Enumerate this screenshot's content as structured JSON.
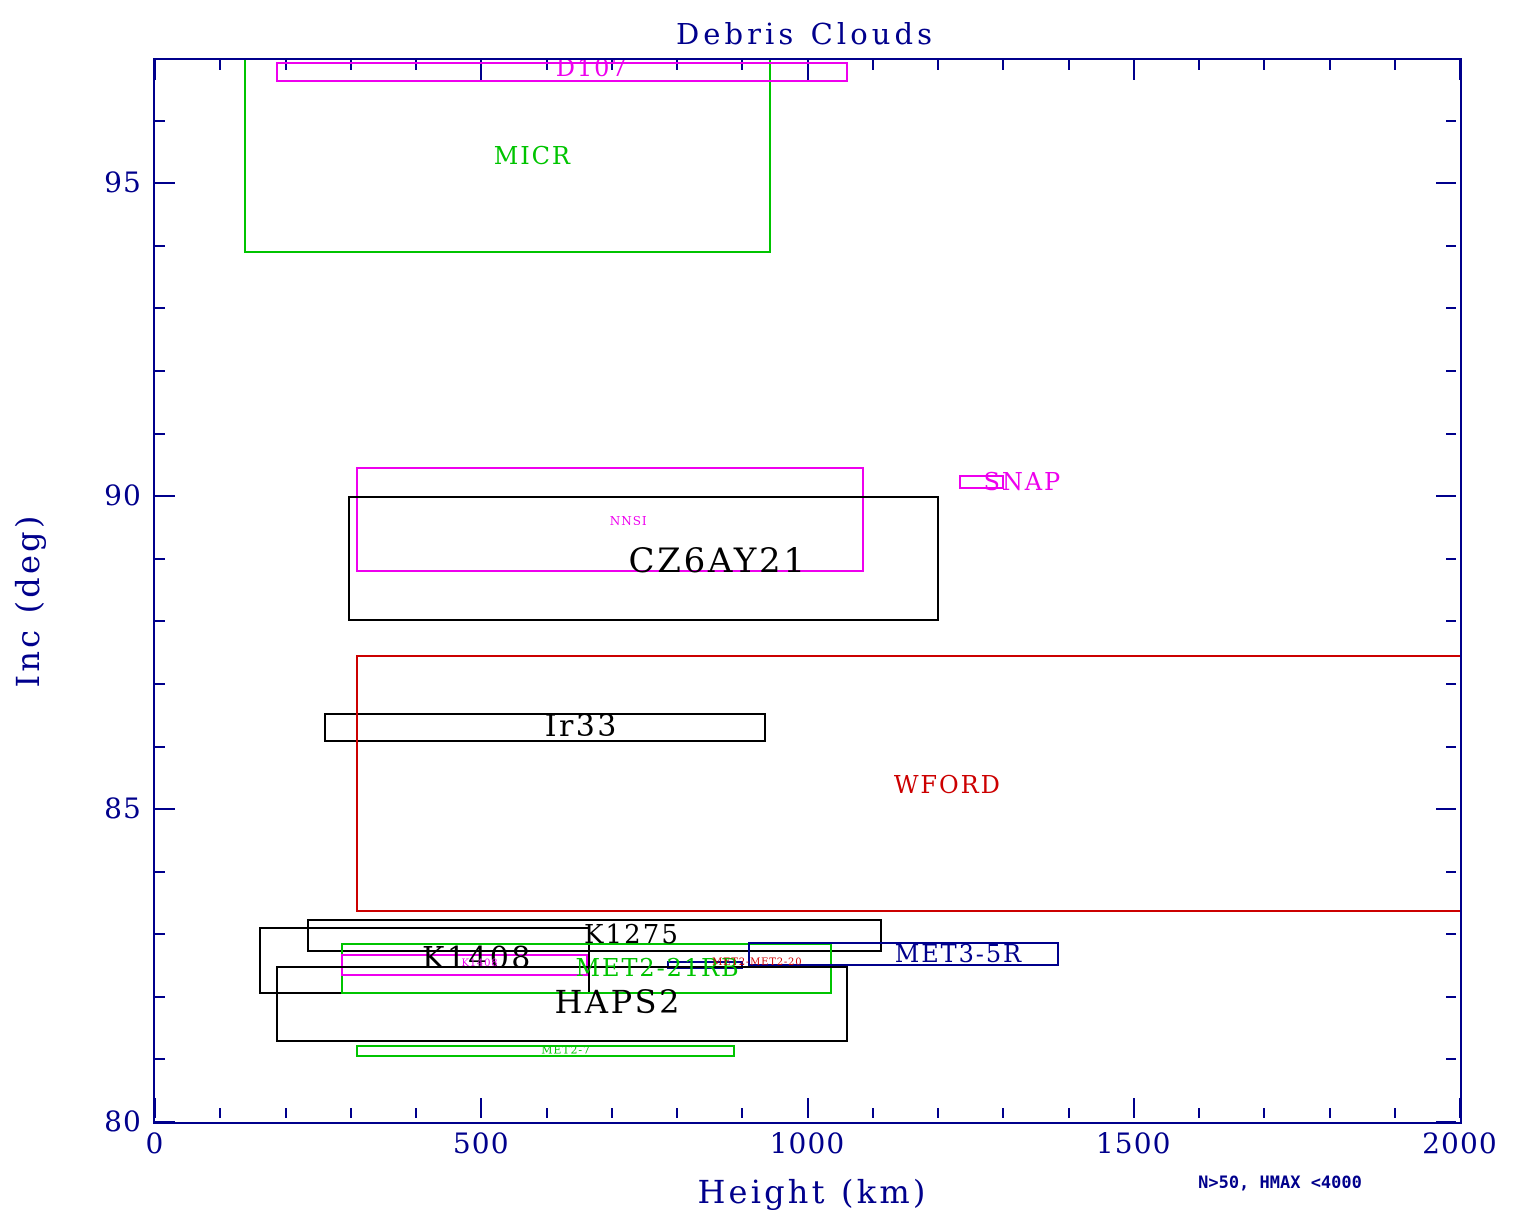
{
  "title": "Debris Clouds",
  "corner_note": "N>50, HMAX <4000",
  "colors": {
    "navy": "#00008c",
    "magenta": "#ee00ee",
    "green": "#00c400",
    "red": "#cc0000",
    "black": "#000000"
  },
  "chart_data": {
    "type": "box",
    "title": "Debris Clouds",
    "xlabel": "Height (km)",
    "ylabel": "Inc (deg)",
    "xlim": [
      0,
      2000
    ],
    "ylim": [
      80,
      96.97
    ],
    "grid": false,
    "x_major_ticks": [
      0,
      500,
      1000,
      1500,
      2000
    ],
    "x_major_labels": [
      "0",
      "500",
      "1000",
      "1500",
      "2000"
    ],
    "x_minor_step": 100,
    "y_major_ticks": [
      80,
      85,
      90,
      95
    ],
    "y_major_labels": [
      "80",
      "85",
      "90",
      "95"
    ],
    "y_minor_step": 1,
    "boxes": [
      {
        "id": "MICR",
        "color": "green",
        "x0": 138,
        "x1": 943,
        "yBot": 93.9,
        "yTop": 97.3,
        "label": {
          "text": "MICR",
          "x": 579,
          "y": 95.44,
          "size": 24,
          "color": "green"
        }
      },
      {
        "id": "D107",
        "color": "magenta",
        "x0": 187,
        "x1": 1061,
        "yBot": 96.63,
        "yTop": 96.93,
        "label": {
          "text": "D107",
          "x": 670,
          "y": 96.84,
          "size": 24,
          "color": "magenta"
        }
      },
      {
        "id": "NNSI",
        "color": "magenta",
        "x0": 310,
        "x1": 1085,
        "yBot": 88.81,
        "yTop": 90.45,
        "label": {
          "text": "NNSI",
          "x": 726,
          "y": 89.61,
          "size": 12,
          "color": "magenta"
        }
      },
      {
        "id": "CZ6AY21",
        "color": "black",
        "x0": 297,
        "x1": 1200,
        "yBot": 88.02,
        "yTop": 89.99,
        "label": {
          "text": "CZ6AY21",
          "x": 863,
          "y": 88.96,
          "size": 34,
          "color": "black"
        }
      },
      {
        "id": "SNAP",
        "color": "magenta",
        "x0": 1234,
        "x1": 1300,
        "yBot": 90.13,
        "yTop": 90.32,
        "label": {
          "text": "SNAP",
          "x": 1330,
          "y": 90.23,
          "size": 24,
          "color": "magenta"
        }
      },
      {
        "id": "Ir33",
        "color": "black",
        "x0": 261,
        "x1": 935,
        "yBot": 86.09,
        "yTop": 86.52,
        "label": {
          "text": "Ir33",
          "x": 654,
          "y": 86.31,
          "size": 30,
          "color": "black"
        }
      },
      {
        "id": "WFORD",
        "color": "red",
        "x0": 310,
        "x1": 2110,
        "yBot": 83.37,
        "yTop": 87.45,
        "label": {
          "text": "WFORD",
          "x": 1215,
          "y": 85.38,
          "size": 24,
          "color": "red"
        }
      },
      {
        "id": "K1275",
        "color": "black",
        "x0": 234,
        "x1": 1113,
        "yBot": 82.73,
        "yTop": 83.23,
        "label": {
          "text": "K1275",
          "x": 731,
          "y": 82.99,
          "size": 26,
          "color": "black"
        }
      },
      {
        "id": "K1408",
        "color": "black",
        "x0": 161,
        "x1": 665,
        "yBot": 82.06,
        "yTop": 83.1,
        "label": {
          "text": "K1408",
          "x": 494,
          "y": 82.6,
          "size": 30,
          "color": "black"
        }
      },
      {
        "id": "MET2-21RB",
        "color": "green",
        "x0": 287,
        "x1": 1036,
        "yBot": 82.06,
        "yTop": 82.84,
        "label": {
          "text": "MET2-21RB",
          "x": 771,
          "y": 82.46,
          "size": 24,
          "color": "green"
        }
      },
      {
        "id": "K1408-m",
        "color": "magenta",
        "x0": 287,
        "x1": 662,
        "yBot": 82.35,
        "yTop": 82.67,
        "label": {
          "text": "K1408",
          "x": 498,
          "y": 82.53,
          "size": 10,
          "color": "magenta"
        }
      },
      {
        "id": "MET3-5R",
        "color": "navy",
        "x0": 910,
        "x1": 1384,
        "yBot": 82.51,
        "yTop": 82.86,
        "label": {
          "text": "MET3-5R",
          "x": 1232,
          "y": 82.68,
          "size": 24,
          "color": "navy"
        }
      },
      {
        "id": "navy-flat",
        "color": "navy",
        "x0": 786,
        "x1": 900,
        "yBot": 82.46,
        "yTop": 82.56,
        "label": null
      },
      {
        "id": "HAPS2",
        "color": "black",
        "x0": 187,
        "x1": 1061,
        "yBot": 81.29,
        "yTop": 82.48,
        "label": {
          "text": "HAPS2",
          "x": 710,
          "y": 81.91,
          "size": 32,
          "color": "black"
        }
      },
      {
        "id": "MET2-7",
        "color": "green",
        "x0": 310,
        "x1": 887,
        "yBot": 81.05,
        "yTop": 81.21,
        "label": {
          "text": "MET2-7",
          "x": 630,
          "y": 81.15,
          "size": 11,
          "color": "green"
        }
      }
    ],
    "extra_texts": [
      {
        "text": "MET2-MET2-20",
        "x": 923,
        "y": 82.54,
        "size": 10,
        "color": "red"
      }
    ]
  }
}
